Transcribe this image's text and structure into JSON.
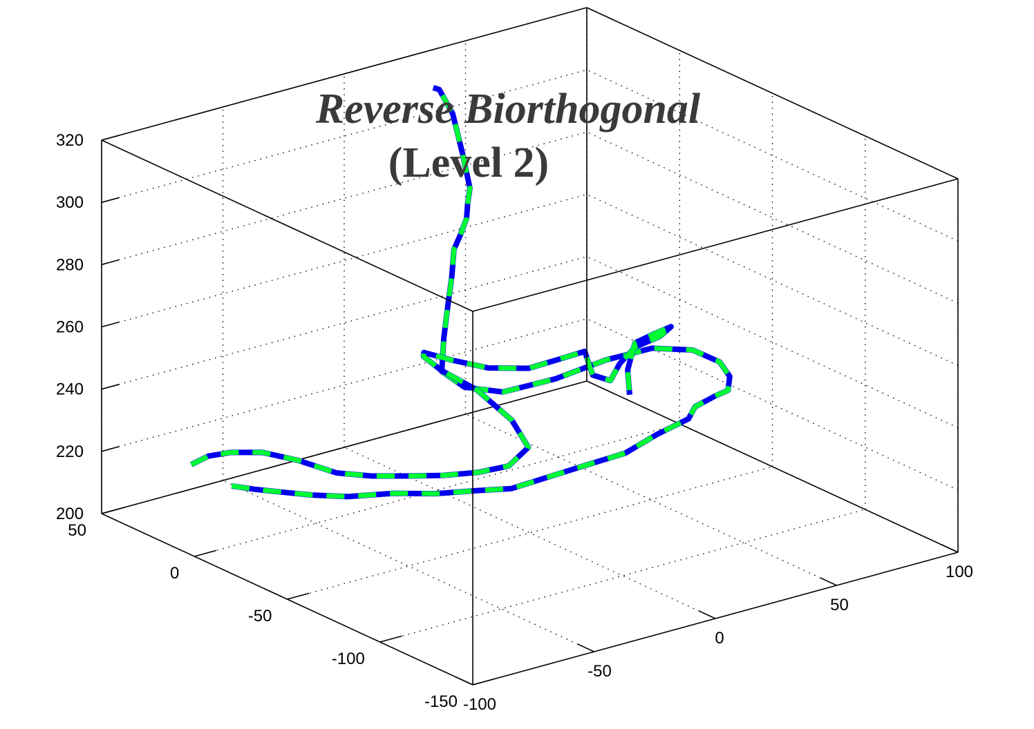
{
  "chart_data": {
    "type": "line3d",
    "title": [
      "Reverse Biorthogonal",
      "(Level 2)"
    ],
    "title_style": [
      "italic",
      "normal"
    ],
    "xlim": [
      -100,
      100
    ],
    "ylim": [
      -150,
      50
    ],
    "zlim": [
      200,
      320
    ],
    "x_ticks": [
      "-100",
      "-50",
      "0",
      "50",
      "100"
    ],
    "y_ticks": [
      "-150",
      "-100",
      "-50",
      "0",
      "50"
    ],
    "z_ticks": [
      "200",
      "220",
      "240",
      "260",
      "280",
      "300",
      "320"
    ],
    "grid": true,
    "box": true,
    "colors": {
      "series_a": "#0000ee",
      "series_b": "#00ff33",
      "axis": "#000000",
      "title": "#3a3a3a"
    },
    "series": [
      {
        "line_style": "solid",
        "color": "#0000ee",
        "points": [
          [
            -77,
            10,
            215
          ],
          [
            -73,
            3,
            215
          ],
          [
            -66,
            -2,
            214
          ],
          [
            -56,
            -6,
            212
          ],
          [
            -46,
            -12,
            211
          ],
          [
            -34,
            -21,
            212
          ],
          [
            -25,
            -32,
            213
          ],
          [
            -15,
            -40,
            214
          ],
          [
            -6,
            -48,
            215
          ],
          [
            4,
            -56,
            219
          ],
          [
            14,
            -64,
            223
          ],
          [
            24,
            -70,
            226
          ],
          [
            34,
            -74,
            231
          ],
          [
            44,
            -78,
            235
          ],
          [
            49,
            -75,
            237
          ],
          [
            55,
            -78,
            240
          ],
          [
            58,
            -81,
            242
          ],
          [
            61,
            -78,
            245
          ],
          [
            63,
            -70,
            247
          ],
          [
            61,
            -58,
            248
          ],
          [
            55,
            -44,
            246
          ],
          [
            45,
            -32,
            241
          ],
          [
            32,
            -22,
            235
          ],
          [
            18,
            -12,
            231
          ],
          [
            9,
            -3,
            232
          ],
          [
            5,
            4,
            236
          ],
          [
            12,
            12,
            243
          ],
          [
            20,
            20,
            251
          ],
          [
            26,
            26,
            256
          ],
          [
            33,
            34,
            261
          ],
          [
            41,
            41,
            262
          ],
          [
            47,
            47,
            262
          ],
          [
            52,
            52,
            262
          ],
          [
            57,
            58,
            264
          ],
          [
            61,
            62,
            267
          ],
          [
            61,
            66,
            277
          ],
          [
            60,
            70,
            289
          ],
          [
            56,
            72,
            297
          ],
          [
            52,
            70,
            299
          ]
        ]
      },
      {
        "line_style": "dashed",
        "color": "#00ff33",
        "points": [
          [
            -77,
            10,
            215
          ],
          [
            -73,
            3,
            215
          ],
          [
            -66,
            -2,
            214
          ],
          [
            -56,
            -6,
            212
          ],
          [
            -46,
            -12,
            211
          ],
          [
            -34,
            -21,
            212
          ],
          [
            -25,
            -32,
            213
          ],
          [
            -15,
            -40,
            214
          ],
          [
            -6,
            -48,
            215
          ],
          [
            4,
            -56,
            219
          ],
          [
            14,
            -64,
            223
          ],
          [
            24,
            -70,
            226
          ],
          [
            34,
            -74,
            231
          ],
          [
            44,
            -78,
            235
          ],
          [
            49,
            -75,
            237
          ],
          [
            55,
            -78,
            240
          ],
          [
            58,
            -81,
            242
          ],
          [
            61,
            -78,
            245
          ],
          [
            63,
            -70,
            247
          ],
          [
            61,
            -58,
            248
          ],
          [
            55,
            -44,
            246
          ],
          [
            45,
            -32,
            241
          ],
          [
            32,
            -22,
            235
          ],
          [
            18,
            -12,
            231
          ],
          [
            9,
            -3,
            232
          ],
          [
            5,
            4,
            236
          ],
          [
            12,
            12,
            243
          ],
          [
            20,
            20,
            251
          ],
          [
            26,
            26,
            256
          ],
          [
            33,
            34,
            261
          ],
          [
            41,
            41,
            262
          ],
          [
            47,
            47,
            262
          ],
          [
            52,
            52,
            262
          ],
          [
            57,
            58,
            264
          ],
          [
            61,
            62,
            267
          ],
          [
            61,
            66,
            277
          ],
          [
            60,
            70,
            289
          ],
          [
            56,
            72,
            297
          ],
          [
            52,
            70,
            299
          ]
        ]
      },
      {
        "line_style": "solid",
        "color": "#0000ee",
        "points": [
          [
            -86,
            20,
            221
          ],
          [
            -82,
            16,
            224
          ],
          [
            -76,
            12,
            225
          ],
          [
            -66,
            8,
            224
          ],
          [
            -56,
            2,
            221
          ],
          [
            -46,
            -6,
            217
          ],
          [
            -37,
            -13,
            216
          ],
          [
            -28,
            -20,
            216
          ],
          [
            -18,
            -27,
            216
          ],
          [
            -9,
            -34,
            217
          ],
          [
            -1,
            -40,
            219
          ],
          [
            4,
            -44,
            225
          ],
          [
            1,
            -39,
            233
          ],
          [
            -5,
            -28,
            241
          ],
          [
            -12,
            -18,
            246
          ],
          [
            -14,
            -11,
            249
          ],
          [
            -10,
            -6,
            248
          ],
          [
            0,
            -8,
            244
          ],
          [
            12,
            -12,
            240
          ],
          [
            24,
            -18,
            239
          ],
          [
            34,
            -22,
            241
          ],
          [
            41,
            -26,
            243
          ],
          [
            42,
            -29,
            236
          ],
          [
            47,
            -32,
            234
          ],
          [
            54,
            -28,
            237
          ],
          [
            62,
            -26,
            240
          ],
          [
            69,
            -30,
            243
          ],
          [
            72,
            -32,
            246
          ],
          [
            69,
            -27,
            243
          ],
          [
            64,
            -23,
            240
          ],
          [
            61,
            -23,
            232
          ],
          [
            58,
            -28,
            226
          ]
        ]
      },
      {
        "line_style": "dashed",
        "color": "#00ff33",
        "points": [
          [
            -86,
            20,
            221
          ],
          [
            -82,
            16,
            224
          ],
          [
            -76,
            12,
            225
          ],
          [
            -66,
            8,
            224
          ],
          [
            -56,
            2,
            221
          ],
          [
            -46,
            -6,
            217
          ],
          [
            -37,
            -13,
            216
          ],
          [
            -28,
            -20,
            216
          ],
          [
            -18,
            -27,
            216
          ],
          [
            -9,
            -34,
            217
          ],
          [
            -1,
            -40,
            219
          ],
          [
            4,
            -44,
            225
          ],
          [
            1,
            -39,
            233
          ],
          [
            -5,
            -28,
            241
          ],
          [
            -12,
            -18,
            246
          ],
          [
            -14,
            -11,
            249
          ],
          [
            -10,
            -6,
            248
          ],
          [
            0,
            -8,
            244
          ],
          [
            12,
            -12,
            240
          ],
          [
            24,
            -18,
            239
          ],
          [
            34,
            -22,
            241
          ],
          [
            41,
            -26,
            243
          ],
          [
            42,
            -29,
            236
          ],
          [
            47,
            -32,
            234
          ],
          [
            54,
            -28,
            237
          ],
          [
            62,
            -26,
            240
          ],
          [
            69,
            -30,
            243
          ],
          [
            72,
            -32,
            246
          ],
          [
            69,
            -27,
            243
          ],
          [
            64,
            -23,
            240
          ],
          [
            61,
            -23,
            232
          ],
          [
            58,
            -28,
            226
          ]
        ]
      }
    ]
  }
}
